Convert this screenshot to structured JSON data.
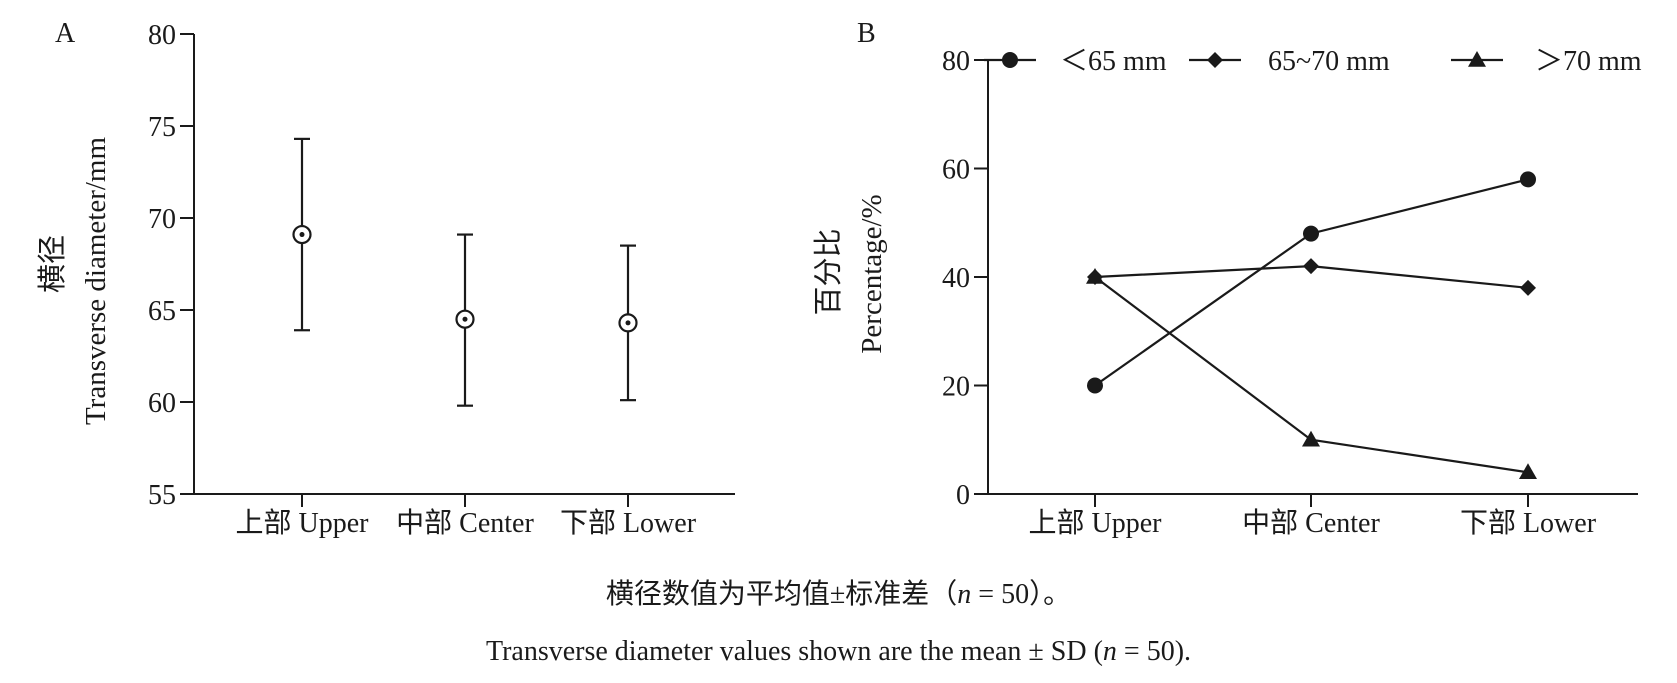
{
  "chart_data": [
    {
      "panel": "A",
      "type": "errorbar",
      "categories": [
        "上部 Upper",
        "中部 Center",
        "下部 Lower"
      ],
      "mean": [
        69.1,
        64.5,
        64.3
      ],
      "error_low": [
        63.9,
        59.8,
        60.1
      ],
      "error_high": [
        74.3,
        69.1,
        68.5
      ],
      "ylabel_zh": "横径",
      "ylabel_en": "Transverse diameter/mm",
      "ylim": [
        55,
        80
      ],
      "yticks": [
        "55",
        "60",
        "65",
        "70",
        "75",
        "80"
      ]
    },
    {
      "panel": "B",
      "type": "line",
      "categories": [
        "上部 Upper",
        "中部 Center",
        "下部 Lower"
      ],
      "series": [
        {
          "name": "＜65 mm",
          "marker": "circle",
          "values": [
            20,
            48,
            58
          ]
        },
        {
          "name": "65~70  mm",
          "marker": "diamond",
          "values": [
            40,
            42,
            38
          ]
        },
        {
          "name": "＞70 mm",
          "marker": "triangle",
          "values": [
            40,
            10,
            4
          ]
        }
      ],
      "ylabel_zh": "百分比",
      "ylabel_en": "Percentage/%",
      "ylim": [
        0,
        80
      ],
      "yticks": [
        "0",
        "20",
        "40",
        "60",
        "80"
      ],
      "legend_position": "top"
    }
  ],
  "caption": {
    "zh": "横径数值为平均值±标准差（",
    "zh_n": "n",
    "zh_rest": " = 50）。",
    "en": "Transverse diameter values shown are the mean ± SD (",
    "en_n": "n",
    "en_rest": " = 50)."
  }
}
